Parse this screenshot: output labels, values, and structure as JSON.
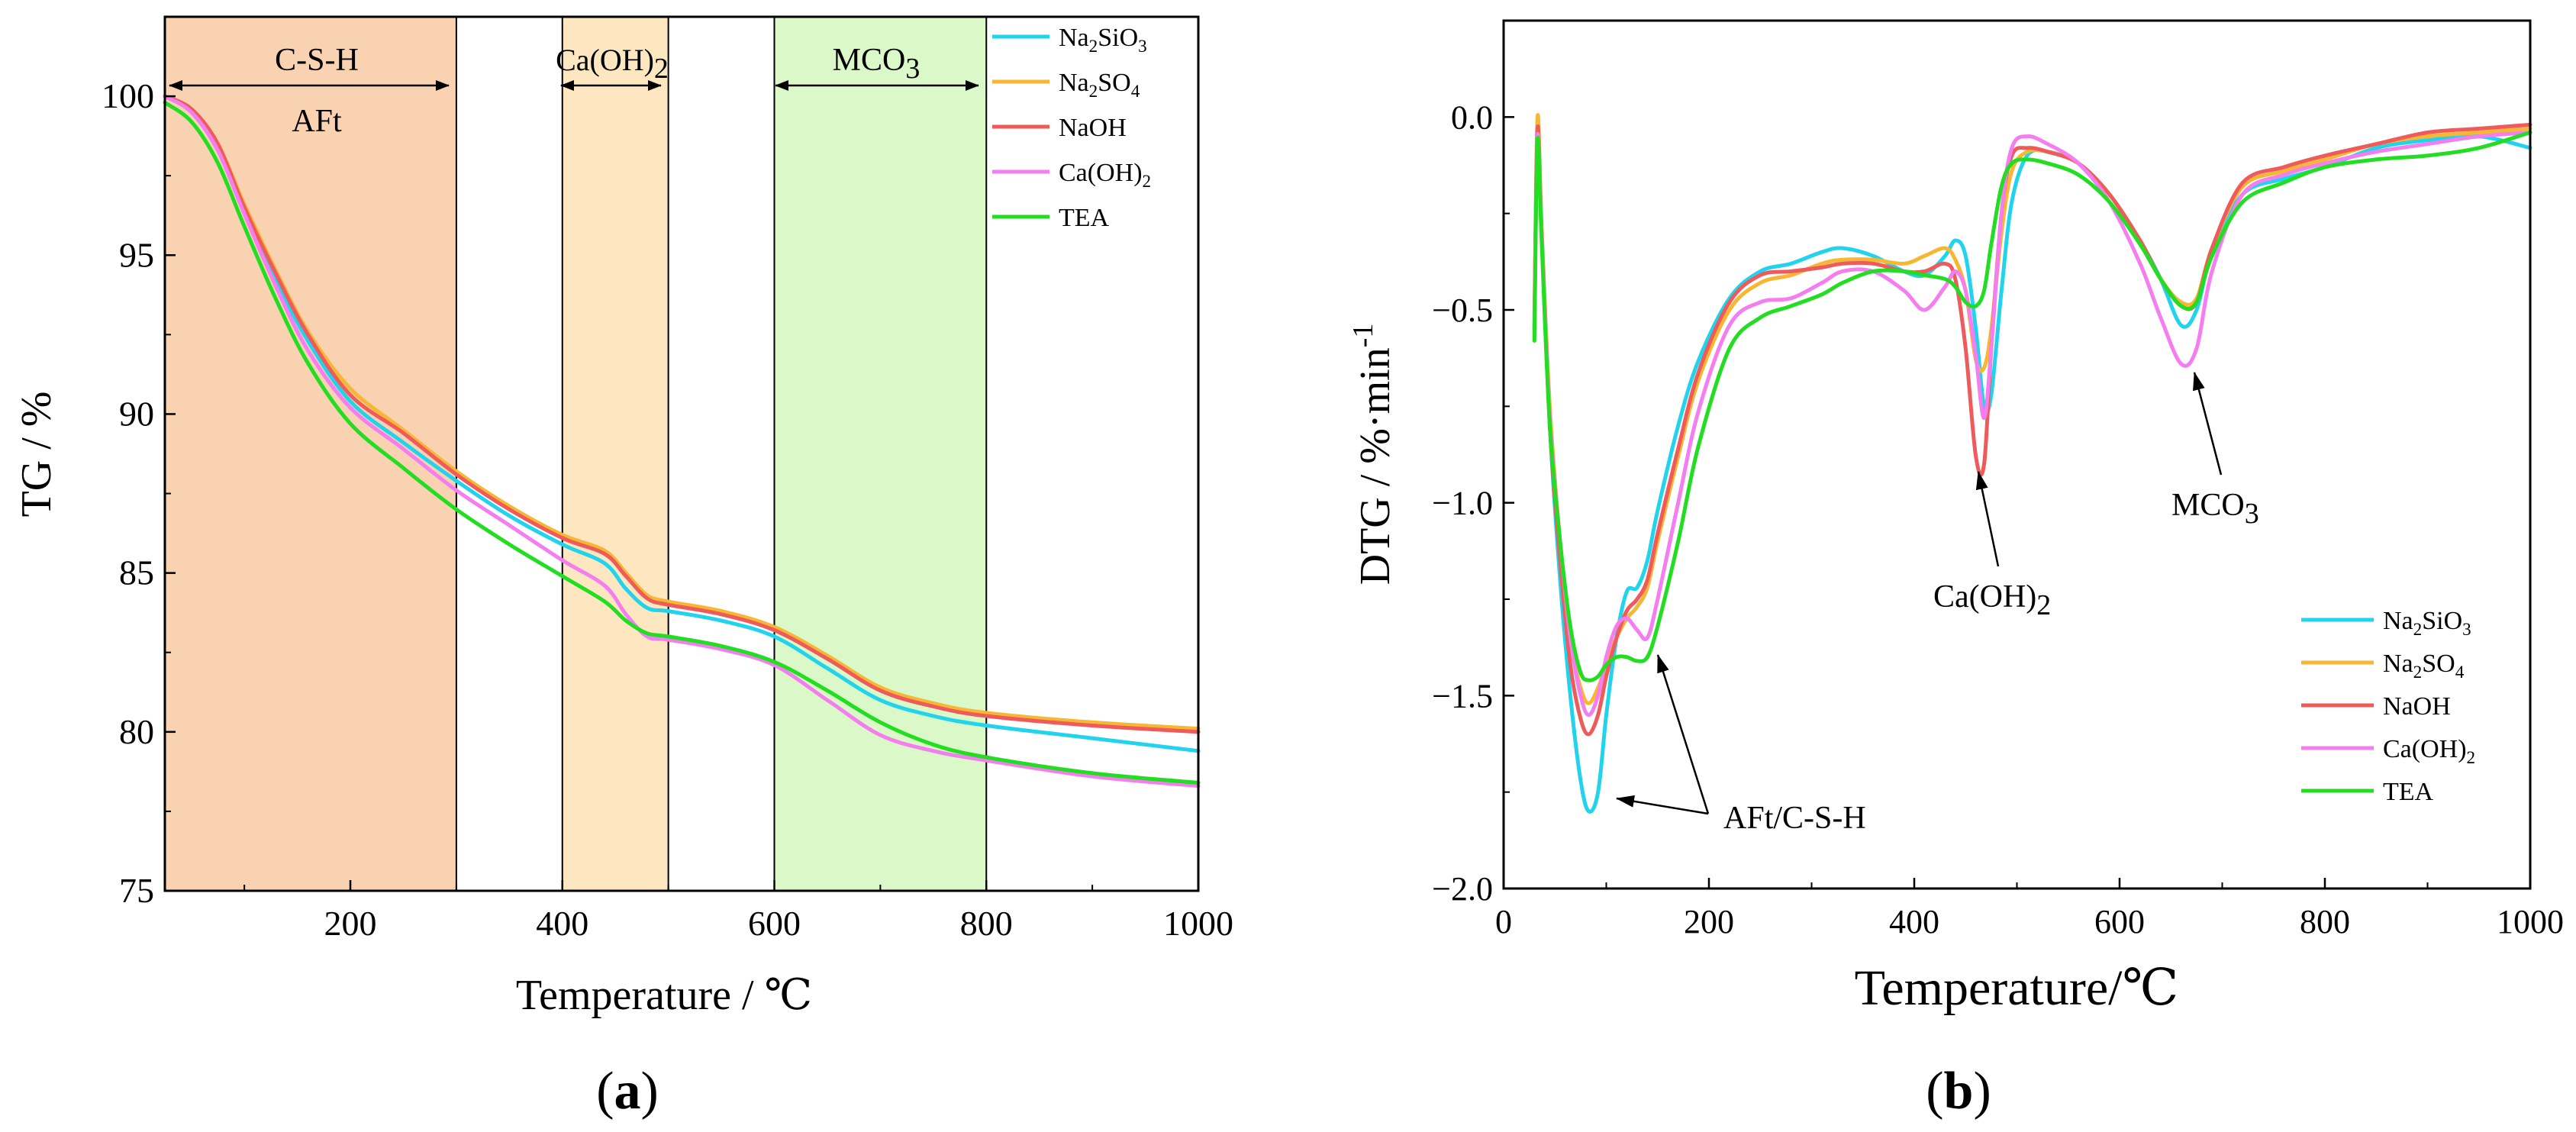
{
  "colors": {
    "Na2SiO3": "#22d3ee",
    "Na2SO4": "#f7b733",
    "NaOH": "#ef5a5a",
    "CaOH2": "#f47ef0",
    "TEA": "#22dd22",
    "band_csh": "#f9d2b2",
    "band_caoh2": "#fce7c1",
    "band_mco3": "#daf8c8"
  },
  "legend": [
    {
      "key": "Na2SiO3",
      "base": "Na",
      "sub": "2",
      "mid": "SiO",
      "sub2": "3",
      "tail": ""
    },
    {
      "key": "Na2SO4",
      "base": "Na",
      "sub": "2",
      "mid": "SO",
      "sub2": "4",
      "tail": ""
    },
    {
      "key": "NaOH",
      "base": "NaOH",
      "sub": "",
      "mid": "",
      "sub2": "",
      "tail": ""
    },
    {
      "key": "CaOH2",
      "base": "Ca(OH)",
      "sub": "2",
      "mid": "",
      "sub2": "",
      "tail": ""
    },
    {
      "key": "TEA",
      "base": "TEA",
      "sub": "",
      "mid": "",
      "sub2": "",
      "tail": ""
    }
  ],
  "chart_data": [
    {
      "type": "line",
      "panel_label": "(a)",
      "xlabel": "Temperature / ℃",
      "ylabel": "TG / %",
      "xlim": [
        25,
        1000
      ],
      "ylim": [
        75,
        102.5
      ],
      "xticks": [
        200,
        400,
        600,
        800,
        1000
      ],
      "yticks": [
        75,
        80,
        85,
        90,
        95,
        100
      ],
      "bands": [
        {
          "from": 25,
          "to": 300,
          "color_key": "band_csh",
          "label_top": "C-S-H",
          "label_bottom": "AFt"
        },
        {
          "from": 400,
          "to": 500,
          "color_key": "band_caoh2",
          "label_top": "Ca(OH)",
          "label_top_sub": "2"
        },
        {
          "from": 600,
          "to": 800,
          "color_key": "band_mco3",
          "label_top": "MCO",
          "label_top_sub": "3"
        }
      ],
      "series": [
        {
          "name": "Na2SiO3",
          "x": [
            25,
            50,
            75,
            100,
            130,
            160,
            200,
            250,
            300,
            350,
            400,
            440,
            460,
            480,
            500,
            550,
            600,
            650,
            700,
            750,
            800,
            900,
            1000
          ],
          "y": [
            100,
            99.5,
            98.3,
            96.4,
            94.2,
            92.3,
            90.4,
            89.1,
            87.9,
            86.8,
            85.9,
            85.3,
            84.5,
            83.9,
            83.8,
            83.5,
            83.0,
            82.0,
            81.0,
            80.5,
            80.2,
            79.8,
            79.4
          ]
        },
        {
          "name": "Na2SO4",
          "x": [
            25,
            50,
            75,
            100,
            130,
            160,
            200,
            250,
            300,
            350,
            400,
            440,
            460,
            480,
            500,
            550,
            600,
            650,
            700,
            750,
            800,
            900,
            1000
          ],
          "y": [
            100,
            99.6,
            98.5,
            96.6,
            94.5,
            92.6,
            90.8,
            89.5,
            88.2,
            87.1,
            86.2,
            85.7,
            85.0,
            84.3,
            84.1,
            83.8,
            83.3,
            82.4,
            81.4,
            80.9,
            80.6,
            80.3,
            80.1
          ]
        },
        {
          "name": "NaOH",
          "x": [
            25,
            50,
            75,
            100,
            130,
            160,
            200,
            250,
            300,
            350,
            400,
            440,
            460,
            480,
            500,
            550,
            600,
            650,
            700,
            750,
            800,
            900,
            1000
          ],
          "y": [
            100,
            99.6,
            98.5,
            96.5,
            94.4,
            92.5,
            90.6,
            89.4,
            88.1,
            87.0,
            86.1,
            85.6,
            84.9,
            84.2,
            84.0,
            83.7,
            83.2,
            82.3,
            81.3,
            80.8,
            80.5,
            80.2,
            80.0
          ]
        },
        {
          "name": "CaOH2",
          "x": [
            25,
            50,
            75,
            100,
            130,
            160,
            200,
            250,
            300,
            350,
            400,
            440,
            460,
            480,
            500,
            550,
            600,
            650,
            700,
            750,
            800,
            900,
            1000
          ],
          "y": [
            100,
            99.5,
            98.3,
            96.3,
            94.0,
            92.0,
            90.2,
            88.9,
            87.6,
            86.5,
            85.4,
            84.6,
            83.7,
            83.0,
            82.9,
            82.6,
            82.1,
            81.0,
            79.9,
            79.4,
            79.1,
            78.6,
            78.3
          ]
        },
        {
          "name": "TEA",
          "x": [
            25,
            50,
            75,
            100,
            130,
            160,
            200,
            250,
            300,
            350,
            400,
            440,
            460,
            480,
            500,
            550,
            600,
            650,
            700,
            750,
            800,
            900,
            1000
          ],
          "y": [
            99.8,
            99.2,
            97.9,
            95.9,
            93.6,
            91.6,
            89.7,
            88.3,
            87.0,
            85.9,
            84.9,
            84.1,
            83.5,
            83.1,
            83.0,
            82.7,
            82.2,
            81.3,
            80.3,
            79.6,
            79.2,
            78.7,
            78.4
          ]
        }
      ]
    },
    {
      "type": "line",
      "panel_label": "(b)",
      "xlabel": "Temperature/℃",
      "ylabel": "DTG / %·min",
      "ylabel_sup": "-1",
      "xlim": [
        0,
        1000
      ],
      "ylim": [
        -2.0,
        0.25
      ],
      "xticks": [
        0,
        200,
        400,
        600,
        800,
        1000
      ],
      "yticks": [
        -2.0,
        -1.5,
        -1.0,
        -0.5,
        0.0
      ],
      "ytick_labels": [
        "−2.0",
        "−1.5",
        "−1.0",
        "−0.5",
        "0.0"
      ],
      "annotations": [
        {
          "text": "AFt/C-S-H",
          "sub": ""
        },
        {
          "text": "Ca(OH)",
          "sub": "2"
        },
        {
          "text": "MCO",
          "sub": "3"
        }
      ],
      "series": [
        {
          "name": "Na2SiO3",
          "x": [
            30,
            33,
            37,
            45,
            55,
            65,
            75,
            83,
            92,
            100,
            110,
            120,
            130,
            140,
            150,
            170,
            190,
            220,
            250,
            280,
            310,
            330,
            360,
            390,
            410,
            430,
            440,
            450,
            460,
            468,
            475,
            485,
            495,
            510,
            530,
            560,
            590,
            620,
            640,
            660,
            675,
            690,
            720,
            760,
            800,
            850,
            900,
            950,
            1000
          ],
          "y": [
            -0.55,
            -0.02,
            -0.3,
            -0.8,
            -1.2,
            -1.5,
            -1.72,
            -1.8,
            -1.75,
            -1.55,
            -1.35,
            -1.23,
            -1.22,
            -1.15,
            -1.02,
            -0.8,
            -0.63,
            -0.47,
            -0.4,
            -0.38,
            -0.35,
            -0.34,
            -0.36,
            -0.4,
            -0.41,
            -0.36,
            -0.32,
            -0.36,
            -0.55,
            -0.75,
            -0.72,
            -0.45,
            -0.22,
            -0.1,
            -0.09,
            -0.12,
            -0.2,
            -0.32,
            -0.42,
            -0.54,
            -0.5,
            -0.35,
            -0.2,
            -0.16,
            -0.13,
            -0.08,
            -0.06,
            -0.05,
            -0.08
          ]
        },
        {
          "name": "Na2SO4",
          "x": [
            30,
            33,
            37,
            45,
            55,
            65,
            75,
            83,
            92,
            100,
            110,
            120,
            130,
            140,
            150,
            170,
            190,
            220,
            250,
            280,
            310,
            330,
            360,
            390,
            410,
            430,
            440,
            450,
            460,
            468,
            475,
            485,
            495,
            510,
            530,
            560,
            590,
            620,
            640,
            660,
            675,
            690,
            720,
            760,
            800,
            850,
            900,
            950,
            1000
          ],
          "y": [
            -0.52,
            0.0,
            -0.28,
            -0.75,
            -1.1,
            -1.35,
            -1.48,
            -1.52,
            -1.48,
            -1.42,
            -1.35,
            -1.3,
            -1.27,
            -1.22,
            -1.1,
            -0.88,
            -0.68,
            -0.5,
            -0.43,
            -0.41,
            -0.38,
            -0.37,
            -0.37,
            -0.38,
            -0.36,
            -0.34,
            -0.37,
            -0.45,
            -0.63,
            -0.65,
            -0.55,
            -0.3,
            -0.14,
            -0.09,
            -0.09,
            -0.12,
            -0.2,
            -0.32,
            -0.42,
            -0.48,
            -0.47,
            -0.34,
            -0.18,
            -0.14,
            -0.11,
            -0.07,
            -0.05,
            -0.04,
            -0.03
          ]
        },
        {
          "name": "NaOH",
          "x": [
            30,
            33,
            37,
            45,
            55,
            65,
            75,
            83,
            92,
            100,
            110,
            120,
            130,
            140,
            150,
            170,
            190,
            220,
            250,
            280,
            310,
            330,
            360,
            390,
            410,
            430,
            440,
            450,
            460,
            468,
            475,
            485,
            495,
            510,
            530,
            560,
            590,
            620,
            640,
            660,
            675,
            690,
            720,
            760,
            800,
            850,
            900,
            950,
            1000
          ],
          "y": [
            -0.55,
            -0.03,
            -0.3,
            -0.8,
            -1.15,
            -1.42,
            -1.56,
            -1.6,
            -1.55,
            -1.45,
            -1.35,
            -1.28,
            -1.25,
            -1.2,
            -1.08,
            -0.86,
            -0.66,
            -0.48,
            -0.41,
            -0.4,
            -0.39,
            -0.38,
            -0.38,
            -0.4,
            -0.4,
            -0.38,
            -0.42,
            -0.6,
            -0.88,
            -0.9,
            -0.6,
            -0.25,
            -0.1,
            -0.08,
            -0.09,
            -0.12,
            -0.2,
            -0.32,
            -0.42,
            -0.49,
            -0.48,
            -0.34,
            -0.17,
            -0.13,
            -0.1,
            -0.07,
            -0.04,
            -0.03,
            -0.02
          ]
        },
        {
          "name": "CaOH2",
          "x": [
            30,
            33,
            37,
            45,
            55,
            65,
            75,
            83,
            92,
            100,
            110,
            120,
            130,
            140,
            150,
            170,
            190,
            220,
            250,
            280,
            310,
            330,
            360,
            390,
            410,
            430,
            440,
            450,
            460,
            468,
            475,
            485,
            495,
            510,
            530,
            560,
            590,
            620,
            640,
            660,
            675,
            690,
            720,
            760,
            800,
            850,
            900,
            950,
            1000
          ],
          "y": [
            -0.55,
            -0.05,
            -0.3,
            -0.78,
            -1.1,
            -1.35,
            -1.5,
            -1.55,
            -1.5,
            -1.4,
            -1.32,
            -1.3,
            -1.33,
            -1.35,
            -1.25,
            -1.0,
            -0.76,
            -0.54,
            -0.48,
            -0.47,
            -0.43,
            -0.4,
            -0.4,
            -0.45,
            -0.5,
            -0.44,
            -0.4,
            -0.45,
            -0.62,
            -0.78,
            -0.6,
            -0.25,
            -0.08,
            -0.05,
            -0.07,
            -0.12,
            -0.22,
            -0.38,
            -0.52,
            -0.64,
            -0.6,
            -0.4,
            -0.2,
            -0.15,
            -0.12,
            -0.09,
            -0.07,
            -0.05,
            -0.04
          ]
        },
        {
          "name": "TEA",
          "x": [
            30,
            33,
            37,
            45,
            55,
            65,
            75,
            83,
            92,
            100,
            110,
            120,
            130,
            140,
            150,
            170,
            190,
            220,
            250,
            280,
            310,
            330,
            360,
            390,
            410,
            430,
            440,
            450,
            460,
            468,
            475,
            485,
            495,
            510,
            530,
            560,
            590,
            620,
            640,
            660,
            675,
            690,
            720,
            760,
            800,
            850,
            900,
            950,
            1000
          ],
          "y": [
            -0.58,
            -0.06,
            -0.32,
            -0.8,
            -1.1,
            -1.32,
            -1.44,
            -1.46,
            -1.45,
            -1.42,
            -1.4,
            -1.4,
            -1.41,
            -1.4,
            -1.32,
            -1.1,
            -0.85,
            -0.6,
            -0.52,
            -0.49,
            -0.46,
            -0.43,
            -0.4,
            -0.4,
            -0.41,
            -0.42,
            -0.44,
            -0.48,
            -0.49,
            -0.45,
            -0.33,
            -0.18,
            -0.12,
            -0.11,
            -0.12,
            -0.15,
            -0.22,
            -0.33,
            -0.42,
            -0.49,
            -0.48,
            -0.36,
            -0.22,
            -0.17,
            -0.13,
            -0.11,
            -0.1,
            -0.08,
            -0.04
          ]
        }
      ]
    }
  ]
}
